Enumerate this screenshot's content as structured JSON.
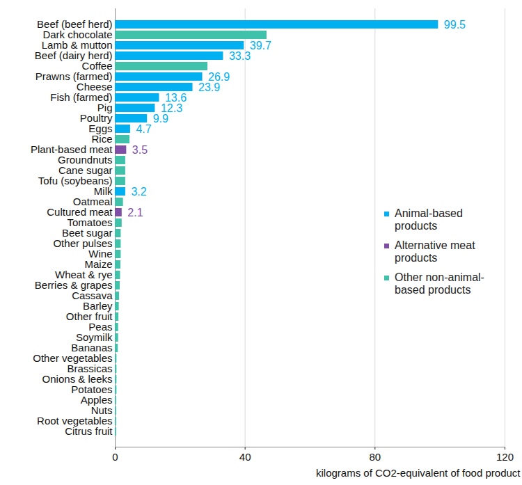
{
  "chart_data": {
    "type": "bar",
    "orientation": "horizontal",
    "x_label": "kilograms of CO2-equivalent of food product",
    "categories": [
      "Beef (beef herd)",
      "Dark chocolate",
      "Lamb & mutton",
      "Beef (dairy herd)",
      "Coffee",
      "Prawns (farmed)",
      "Cheese",
      "Fish (farmed)",
      "Pig",
      "Poultry",
      "Eggs",
      "Rice",
      "Plant-based meat",
      "Groundnuts",
      "Cane sugar",
      "Tofu (soybeans)",
      "Milk",
      "Oatmeal",
      "Cultured meat",
      "Tomatoes",
      "Beet sugar",
      "Other pulses",
      "Wine",
      "Maize",
      "Wheat & rye",
      "Berries & grapes",
      "Cassava",
      "Barley",
      "Other fruit",
      "Peas",
      "Soymilk",
      "Bananas",
      "Other vegetables",
      "Brassicas",
      "Onions & leeks",
      "Potatoes",
      "Apples",
      "Nuts",
      "Root vegetables",
      "Citrus fruit"
    ],
    "series": [
      {
        "name": "Animal-based products",
        "color": "#00b0f0",
        "values": [
          99.5,
          null,
          39.7,
          33.3,
          null,
          26.9,
          23.9,
          13.6,
          12.3,
          9.9,
          4.7,
          null,
          null,
          null,
          null,
          null,
          3.2,
          null,
          null,
          null,
          null,
          null,
          null,
          null,
          null,
          null,
          null,
          null,
          null,
          null,
          null,
          null,
          null,
          null,
          null,
          null,
          null,
          null,
          null,
          null
        ],
        "value_labels": [
          "99.5",
          null,
          "39.7",
          "33.3",
          null,
          "26.9",
          "23.9",
          "13.6",
          "12.3",
          "9.9",
          "4.7",
          null,
          null,
          null,
          null,
          null,
          "3.2",
          null,
          null,
          null,
          null,
          null,
          null,
          null,
          null,
          null,
          null,
          null,
          null,
          null,
          null,
          null,
          null,
          null,
          null,
          null,
          null,
          null,
          null,
          null
        ]
      },
      {
        "name": "Alternative meat products",
        "color": "#7f4fa8",
        "values": [
          null,
          null,
          null,
          null,
          null,
          null,
          null,
          null,
          null,
          null,
          null,
          null,
          3.5,
          null,
          null,
          null,
          null,
          null,
          2.1,
          null,
          null,
          null,
          null,
          null,
          null,
          null,
          null,
          null,
          null,
          null,
          null,
          null,
          null,
          null,
          null,
          null,
          null,
          null,
          null,
          null
        ],
        "value_labels": [
          null,
          null,
          null,
          null,
          null,
          null,
          null,
          null,
          null,
          null,
          null,
          null,
          "3.5",
          null,
          null,
          null,
          null,
          null,
          "2.1",
          null,
          null,
          null,
          null,
          null,
          null,
          null,
          null,
          null,
          null,
          null,
          null,
          null,
          null,
          null,
          null,
          null,
          null,
          null,
          null,
          null
        ]
      },
      {
        "name": "Other non-animal-based products",
        "color": "#3fc1aa",
        "values": [
          null,
          46.7,
          null,
          null,
          28.5,
          null,
          null,
          null,
          null,
          null,
          null,
          4.5,
          null,
          3.2,
          3.2,
          3.2,
          null,
          2.5,
          null,
          2.1,
          1.8,
          1.8,
          1.8,
          1.7,
          1.6,
          1.5,
          1.3,
          1.2,
          1.1,
          1.0,
          1.0,
          0.9,
          0.5,
          0.5,
          0.5,
          0.5,
          0.4,
          0.4,
          0.4,
          0.4
        ]
      }
    ],
    "xlim": [
      0,
      120
    ],
    "xticks": [
      0,
      40,
      80,
      120
    ],
    "grid": true,
    "data_labels": true,
    "legend": "right"
  }
}
